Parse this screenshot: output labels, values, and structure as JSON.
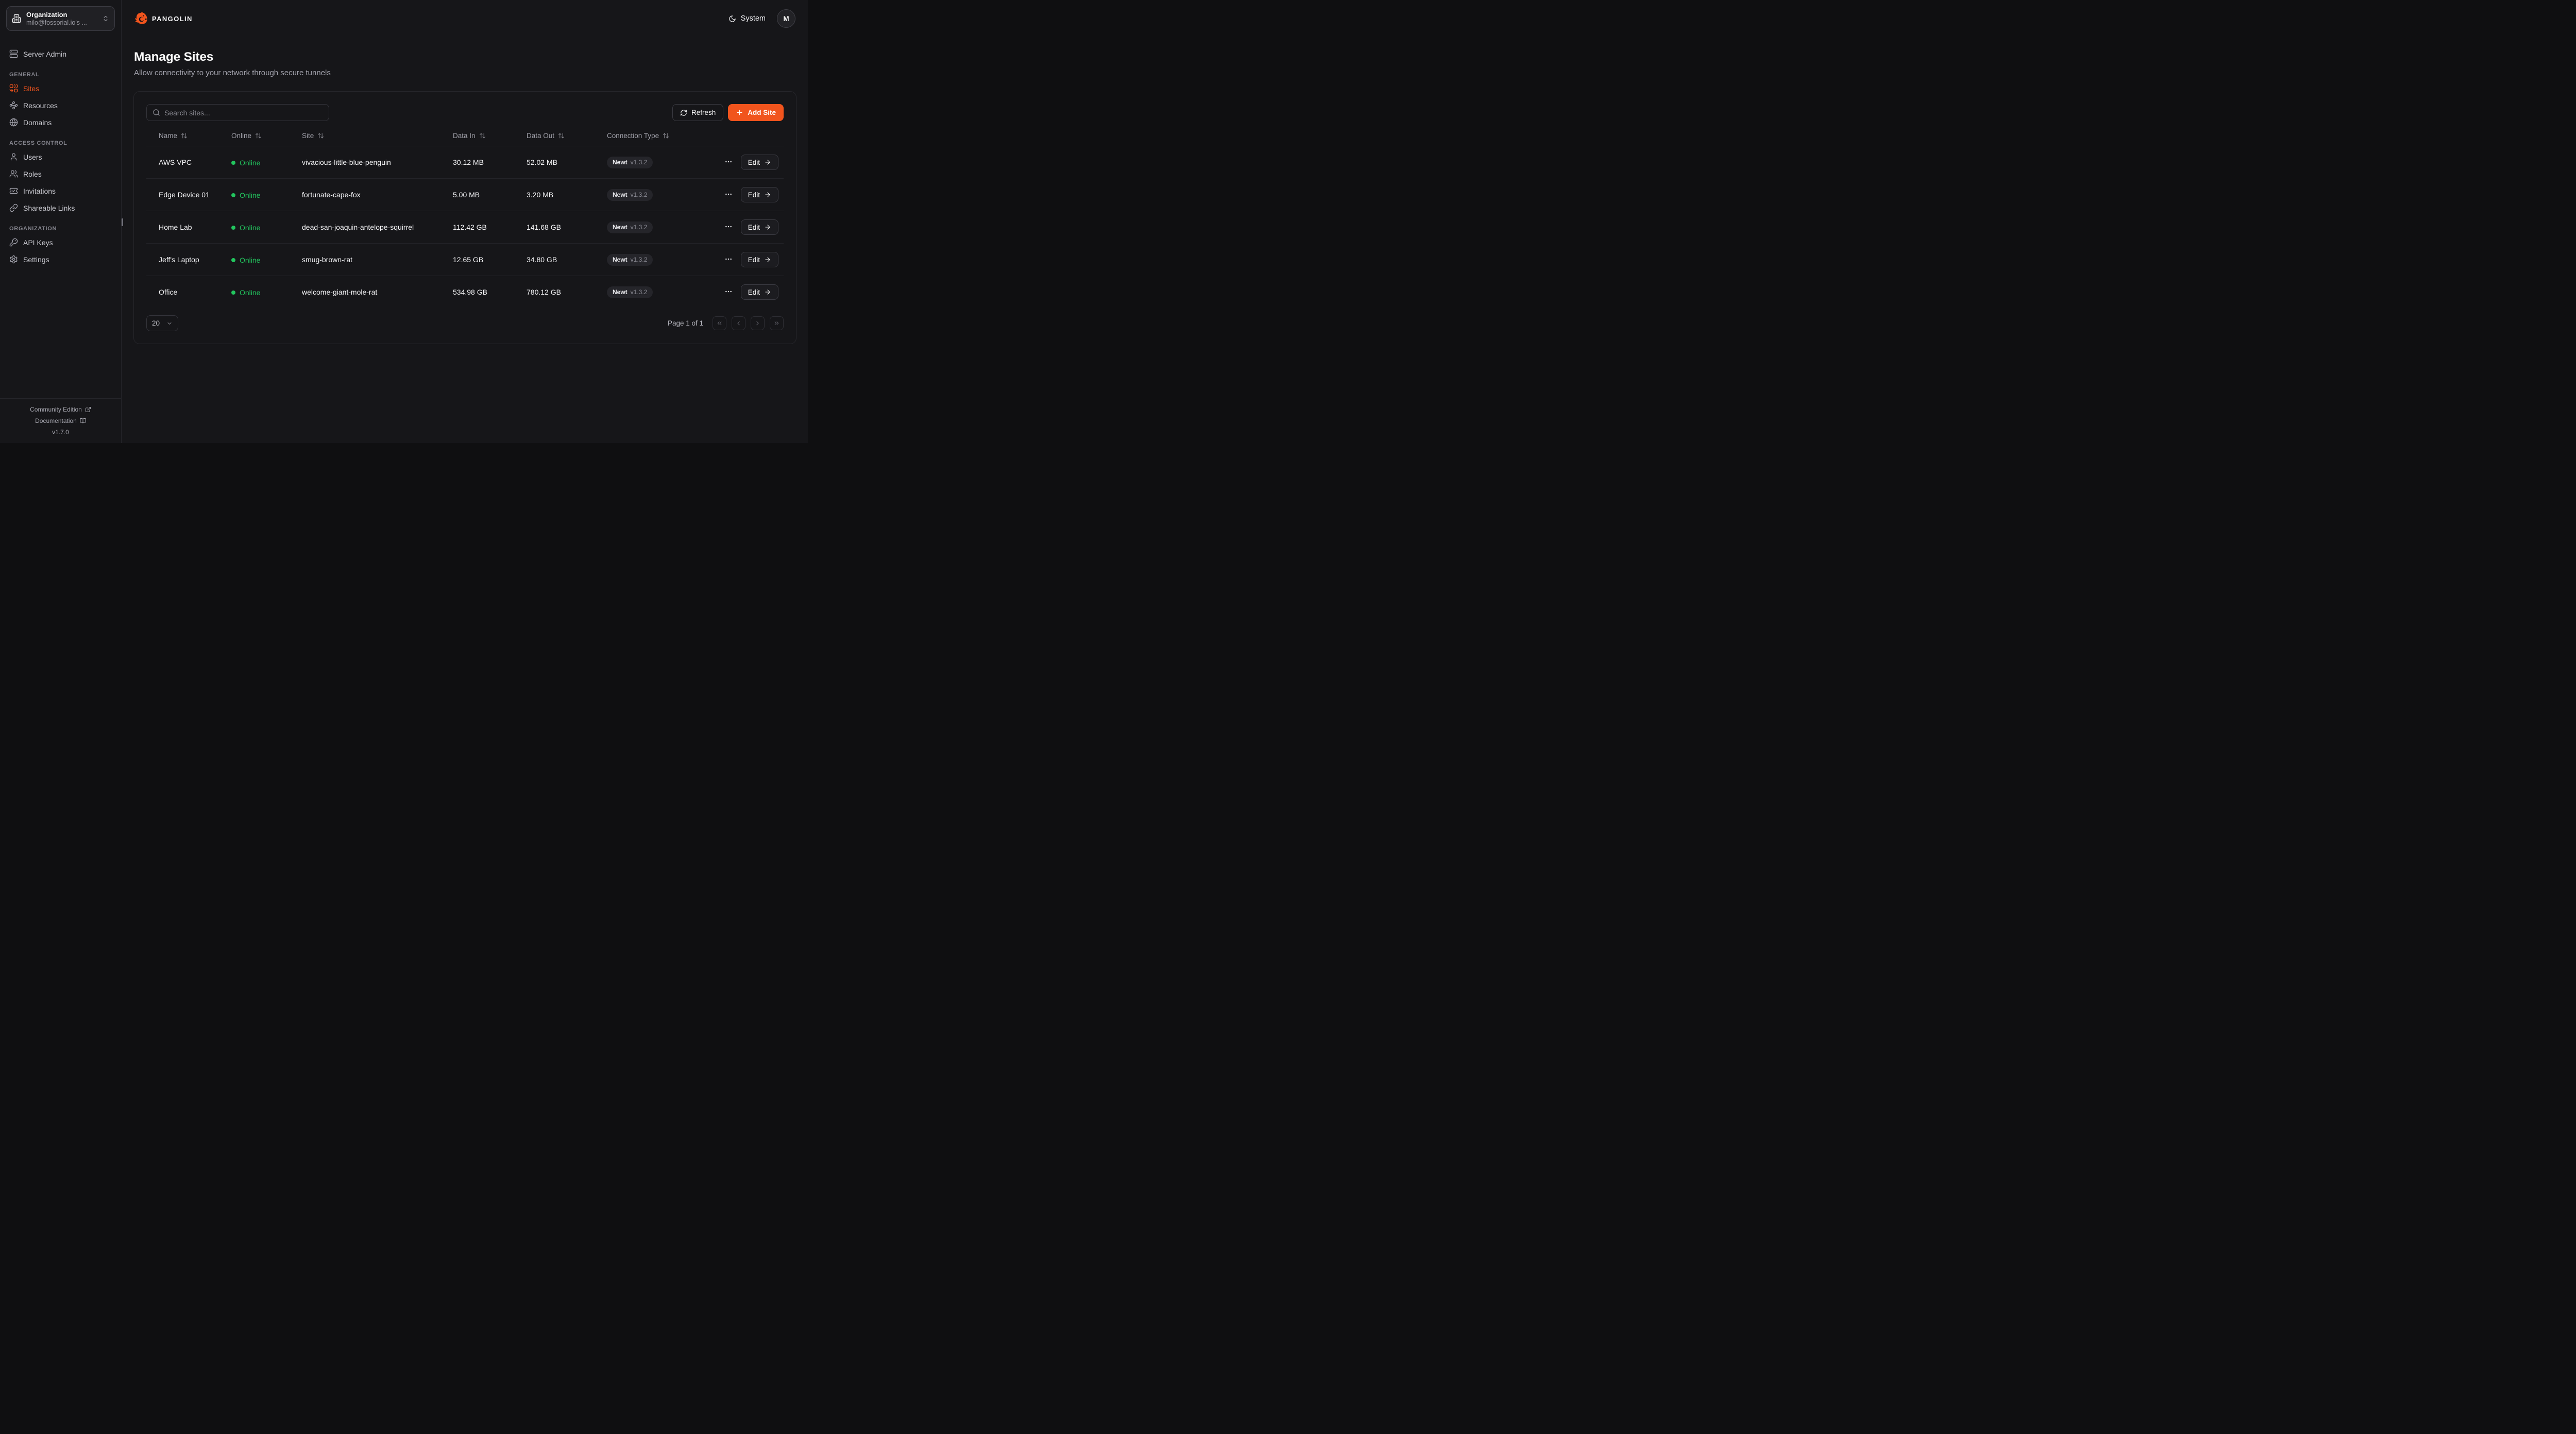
{
  "brand": {
    "name": "PANGOLIN"
  },
  "org_selector": {
    "label": "Organization",
    "value": "milo@fossorial.io's ..."
  },
  "sidebar": {
    "server_admin_label": "Server Admin",
    "sections": [
      {
        "label": "GENERAL",
        "items": [
          {
            "label": "Sites",
            "icon": "sites-icon",
            "active": true
          },
          {
            "label": "Resources",
            "icon": "resources-icon",
            "active": false
          },
          {
            "label": "Domains",
            "icon": "globe-icon",
            "active": false
          }
        ]
      },
      {
        "label": "ACCESS CONTROL",
        "items": [
          {
            "label": "Users",
            "icon": "user-icon",
            "active": false
          },
          {
            "label": "Roles",
            "icon": "users-icon",
            "active": false
          },
          {
            "label": "Invitations",
            "icon": "ticket-check-icon",
            "active": false
          },
          {
            "label": "Shareable Links",
            "icon": "link-icon",
            "active": false
          }
        ]
      },
      {
        "label": "ORGANIZATION",
        "items": [
          {
            "label": "API Keys",
            "icon": "key-icon",
            "active": false
          },
          {
            "label": "Settings",
            "icon": "gear-icon",
            "active": false
          }
        ]
      }
    ],
    "footer": {
      "community_label": "Community Edition",
      "docs_label": "Documentation",
      "version": "v1.7.0"
    }
  },
  "topbar": {
    "theme_label": "System",
    "avatar_initial": "M"
  },
  "page": {
    "title": "Manage Sites",
    "subtitle": "Allow connectivity to your network through secure tunnels"
  },
  "toolbar": {
    "search_placeholder": "Search sites...",
    "refresh_label": "Refresh",
    "add_site_label": "Add Site"
  },
  "table": {
    "columns": [
      {
        "label": "Name",
        "sortable": true
      },
      {
        "label": "Online",
        "sortable": true
      },
      {
        "label": "Site",
        "sortable": true
      },
      {
        "label": "Data In",
        "sortable": true
      },
      {
        "label": "Data Out",
        "sortable": true
      },
      {
        "label": "Connection Type",
        "sortable": true
      },
      {
        "label": "",
        "sortable": false
      }
    ],
    "rows": [
      {
        "name": "AWS VPC",
        "status": "Online",
        "site": "vivacious-little-blue-penguin",
        "data_in": "30.12 MB",
        "data_out": "52.02 MB",
        "connection": "Newt",
        "version": "v1.3.2",
        "edit_label": "Edit"
      },
      {
        "name": "Edge Device 01",
        "status": "Online",
        "site": "fortunate-cape-fox",
        "data_in": "5.00 MB",
        "data_out": "3.20 MB",
        "connection": "Newt",
        "version": "v1.3.2",
        "edit_label": "Edit"
      },
      {
        "name": "Home Lab",
        "status": "Online",
        "site": "dead-san-joaquin-antelope-squirrel",
        "data_in": "112.42 GB",
        "data_out": "141.68 GB",
        "connection": "Newt",
        "version": "v1.3.2",
        "edit_label": "Edit"
      },
      {
        "name": "Jeff's Laptop",
        "status": "Online",
        "site": "smug-brown-rat",
        "data_in": "12.65 GB",
        "data_out": "34.80 GB",
        "connection": "Newt",
        "version": "v1.3.2",
        "edit_label": "Edit"
      },
      {
        "name": "Office",
        "status": "Online",
        "site": "welcome-giant-mole-rat",
        "data_in": "534.98 GB",
        "data_out": "780.12 GB",
        "connection": "Newt",
        "version": "v1.3.2",
        "edit_label": "Edit"
      }
    ]
  },
  "pagination": {
    "page_size": "20",
    "page_label": "Page 1 of 1"
  },
  "colors": {
    "accent": "#f1541d",
    "online_green": "#22c55e"
  }
}
